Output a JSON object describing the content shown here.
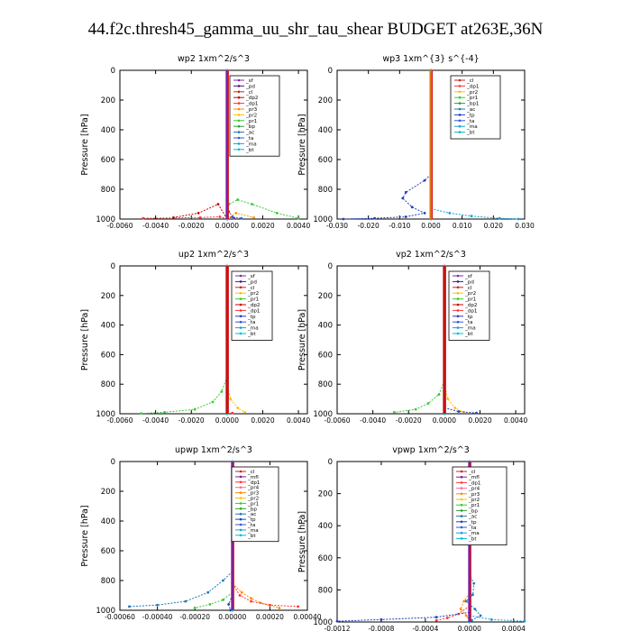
{
  "page_title": "44.f2c.thresh45_gamma_uu_shr_tau_shear  BUDGET at263E,36N",
  "chart_data": [
    {
      "type": "line",
      "title": "wp2   1xm^2/s^3",
      "ylabel": "Pressure [hPa]",
      "ylim": [
        1000,
        0
      ],
      "yticks": [
        0,
        200,
        400,
        600,
        800,
        1000
      ],
      "xlim": [
        -0.006,
        0.0045
      ],
      "xticks": [
        "-0.0060",
        "-0.0040",
        "-0.0020",
        "0.0000",
        "0.0020",
        "0.0040"
      ],
      "xtick_values": [
        -0.006,
        -0.004,
        -0.002,
        0.0,
        0.002,
        0.004
      ],
      "legend": [
        "_sf",
        "_pd",
        "_cl",
        "_dp2",
        "_dp1",
        "_pr3",
        "_pr2",
        "_pr1",
        "_bp",
        "_ac",
        "_ta",
        "_ma",
        "_bt"
      ],
      "series": [
        {
          "name": "_pr1",
          "color": "#33cc33",
          "points": [
            [
              0,
              1000
            ],
            [
              0.0001,
              900
            ],
            [
              0.0006,
              870
            ],
            [
              0.0014,
              900
            ],
            [
              0.0028,
              960
            ],
            [
              0.004,
              995
            ]
          ]
        },
        {
          "name": "_pr3",
          "color": "#ff8c00",
          "points": [
            [
              0,
              1000
            ],
            [
              0.0005,
              960
            ],
            [
              0.0015,
              990
            ]
          ]
        },
        {
          "name": "_dp1",
          "color": "#ff3333",
          "points": [
            [
              0,
              1000
            ],
            [
              -0.0004,
              985
            ],
            [
              -0.0015,
              990
            ],
            [
              -0.0047,
              995
            ]
          ]
        },
        {
          "name": "_dp2",
          "color": "#cc0000",
          "points": [
            [
              0,
              1000
            ],
            [
              -0.0005,
              900
            ],
            [
              -0.0016,
              960
            ],
            [
              -0.003,
              990
            ]
          ]
        },
        {
          "name": "_ac",
          "color": "#1f6fbf",
          "points": [
            [
              0,
              1000
            ],
            [
              0.0003,
              985
            ],
            [
              0.0008,
              995
            ]
          ]
        },
        {
          "name": "_sf",
          "color": "#7b2ea8",
          "points": [
            [
              0,
              1000
            ],
            [
              0.0001,
              950
            ],
            [
              0.0004,
              995
            ]
          ]
        },
        {
          "name": "_cl",
          "color": "#d42020",
          "points": [
            [
              0,
              0
            ],
            [
              0,
              1000
            ]
          ]
        },
        {
          "name": "_bt",
          "color": "#00bcd4",
          "points": [
            [
              0,
              0
            ],
            [
              0,
              1000
            ]
          ]
        }
      ],
      "vline": {
        "x": 0.0,
        "color": "#7b1fa2"
      }
    },
    {
      "type": "line",
      "title": "wp3   1xm^{3} s^{-4}",
      "ylabel": "Pressure [hPa]",
      "ylim": [
        1000,
        0
      ],
      "yticks": [
        0,
        200,
        400,
        600,
        800,
        1000
      ],
      "xlim": [
        -0.03,
        0.03
      ],
      "xticks": [
        "-0.030",
        "-0.020",
        "-0.010",
        "0.000",
        "0.010",
        "0.020",
        "0.030"
      ],
      "xtick_values": [
        -0.03,
        -0.02,
        -0.01,
        0.0,
        0.01,
        0.02,
        0.03
      ],
      "legend": [
        "_cl",
        "_dp1",
        "_pr2",
        "_pr1",
        "_bp1",
        "_ac",
        "_tp",
        "_ta",
        "_ma",
        "_bt"
      ],
      "series": [
        {
          "name": "_ac",
          "color": "#1f3fbf",
          "points": [
            [
              0,
              700
            ],
            [
              -0.002,
              740
            ],
            [
              -0.008,
              820
            ],
            [
              -0.009,
              860
            ],
            [
              -0.006,
              920
            ],
            [
              -0.002,
              960
            ],
            [
              -0.008,
              985
            ],
            [
              -0.018,
              995
            ],
            [
              -0.028,
              1000
            ]
          ]
        },
        {
          "name": "_ma",
          "color": "#1a9fd8",
          "points": [
            [
              0,
              930
            ],
            [
              0.006,
              960
            ],
            [
              0.013,
              980
            ],
            [
              0.022,
              995
            ],
            [
              0.028,
              1000
            ]
          ]
        },
        {
          "name": "_cl",
          "color": "#d42020",
          "points": [
            [
              0,
              0
            ],
            [
              0,
              1000
            ]
          ]
        },
        {
          "name": "_bt",
          "color": "#00bcd4",
          "points": [
            [
              0,
              0
            ],
            [
              0,
              1000
            ]
          ]
        }
      ],
      "vline": {
        "x": 0.0,
        "color": "#e07010"
      }
    },
    {
      "type": "line",
      "title": "up2   1xm^2/s^3",
      "ylabel": "Pressure [hPa]",
      "ylim": [
        1000,
        0
      ],
      "yticks": [
        0,
        200,
        400,
        600,
        800,
        1000
      ],
      "xlim": [
        -0.006,
        0.0045
      ],
      "xticks": [
        "-0.0060",
        "-0.0040",
        "-0.0020",
        "0.0000",
        "0.0020",
        "0.0040"
      ],
      "xtick_values": [
        -0.006,
        -0.004,
        -0.002,
        0.0,
        0.002,
        0.004
      ],
      "legend": [
        "_sf",
        "_pd",
        "_cl",
        "_pr2",
        "_pr1",
        "_dp2",
        "_dp1",
        "_tp",
        "_ta",
        "_ma",
        "_bt"
      ],
      "series": [
        {
          "name": "_pr1",
          "color": "#33cc33",
          "points": [
            [
              0,
              750
            ],
            [
              -0.0003,
              850
            ],
            [
              -0.0008,
              920
            ],
            [
              -0.0018,
              970
            ],
            [
              -0.0035,
              990
            ],
            [
              -0.0048,
              998
            ]
          ]
        },
        {
          "name": "_pr2",
          "color": "#ffc000",
          "points": [
            [
              0,
              800
            ],
            [
              0.0002,
              900
            ],
            [
              0.0006,
              960
            ],
            [
              0.001,
              990
            ]
          ]
        },
        {
          "name": "_dp1",
          "color": "#ff3333",
          "points": [
            [
              0,
              1000
            ],
            [
              0.0003,
              995
            ]
          ]
        },
        {
          "name": "_cl",
          "color": "#d42020",
          "points": [
            [
              0,
              0
            ],
            [
              0,
              1000
            ]
          ]
        },
        {
          "name": "_bt",
          "color": "#00bcd4",
          "points": [
            [
              0,
              0
            ],
            [
              0,
              1000
            ]
          ]
        }
      ],
      "vline": {
        "x": 0.0,
        "color": "#c01010"
      }
    },
    {
      "type": "line",
      "title": "vp2   1xm^2/s^3",
      "ylabel": "Pressure [hPa]",
      "ylim": [
        1000,
        0
      ],
      "yticks": [
        0,
        200,
        400,
        600,
        800,
        1000
      ],
      "xlim": [
        -0.006,
        0.0045
      ],
      "xticks": [
        "-0.0060",
        "-0.0040",
        "-0.0020",
        "0.0000",
        "0.0020",
        "0.0040"
      ],
      "xtick_values": [
        -0.006,
        -0.004,
        -0.002,
        0.0,
        0.002,
        0.004
      ],
      "legend": [
        "_sf",
        "_pd",
        "_cl",
        "_pr2",
        "_pr1",
        "_dp2",
        "_dp1",
        "_tp",
        "_ta",
        "_ma",
        "_bt"
      ],
      "series": [
        {
          "name": "_pr1",
          "color": "#33cc33",
          "points": [
            [
              0,
              780
            ],
            [
              -0.0003,
              870
            ],
            [
              -0.0009,
              930
            ],
            [
              -0.0016,
              970
            ],
            [
              -0.0028,
              990
            ]
          ]
        },
        {
          "name": "_pr2",
          "color": "#ffc000",
          "points": [
            [
              0,
              800
            ],
            [
              0.0002,
              900
            ],
            [
              0.0006,
              960
            ],
            [
              0.0011,
              990
            ]
          ]
        },
        {
          "name": "_ta",
          "color": "#1f3fbf",
          "points": [
            [
              0,
              960
            ],
            [
              0.0008,
              985
            ],
            [
              0.0018,
              995
            ]
          ]
        },
        {
          "name": "_cl",
          "color": "#d42020",
          "points": [
            [
              0,
              0
            ],
            [
              0,
              1000
            ]
          ]
        },
        {
          "name": "_bt",
          "color": "#00bcd4",
          "points": [
            [
              0,
              0
            ],
            [
              0,
              1000
            ]
          ]
        }
      ],
      "vline": {
        "x": 0.0,
        "color": "#c01010"
      }
    },
    {
      "type": "line",
      "title": "upwp   1xm^2/s^3",
      "ylabel": "Pressure [hPa]",
      "ylim": [
        1000,
        0
      ],
      "yticks": [
        0,
        200,
        400,
        600,
        800,
        1000
      ],
      "xlim": [
        -0.0006,
        0.0004
      ],
      "xticks": [
        "-0.00060",
        "-0.00040",
        "-0.00020",
        "0.00000",
        "0.00020",
        "0.00040"
      ],
      "xtick_values": [
        -0.0006,
        -0.0004,
        -0.0002,
        0.0,
        0.0002,
        0.0004
      ],
      "legend": [
        "_cl",
        "_mfl",
        "_dp1",
        "_pr4",
        "_pr3",
        "_pr2",
        "_pr1",
        "_bp",
        "_ac",
        "_tp",
        "_ta",
        "_ma",
        "_bt"
      ],
      "series": [
        {
          "name": "_ac",
          "color": "#1f77b4",
          "points": [
            [
              0,
              740
            ],
            [
              -5e-05,
              800
            ],
            [
              -0.00013,
              880
            ],
            [
              -0.00025,
              940
            ],
            [
              -0.0004,
              965
            ],
            [
              -0.00055,
              975
            ]
          ]
        },
        {
          "name": "_pr1",
          "color": "#33cc33",
          "points": [
            [
              0,
              880
            ],
            [
              -5e-05,
              930
            ],
            [
              -0.00012,
              960
            ],
            [
              -0.0002,
              985
            ]
          ]
        },
        {
          "name": "_pr2",
          "color": "#ff8c00",
          "points": [
            [
              0,
              820
            ],
            [
              5e-05,
              880
            ],
            [
              0.0001,
              920
            ],
            [
              0.00015,
              950
            ],
            [
              0.00025,
              985
            ]
          ]
        },
        {
          "name": "_dp1",
          "color": "#ff3333",
          "points": [
            [
              0,
              820
            ],
            [
              4e-05,
              900
            ],
            [
              0.0001,
              940
            ],
            [
              0.0002,
              965
            ],
            [
              0.00035,
              975
            ]
          ]
        },
        {
          "name": "_ta",
          "color": "#1f3fbf",
          "points": [
            [
              0,
              900
            ],
            [
              -2e-05,
              960
            ],
            [
              -1e-05,
              1000
            ]
          ]
        },
        {
          "name": "_cl",
          "color": "#d42020",
          "points": [
            [
              0,
              0
            ],
            [
              0,
              1000
            ]
          ]
        },
        {
          "name": "_bt",
          "color": "#00bcd4",
          "points": [
            [
              0,
              0
            ],
            [
              0,
              1000
            ]
          ]
        }
      ],
      "vline": {
        "x": 0.0,
        "color": "#7b1fa2"
      }
    },
    {
      "type": "line",
      "title": "vpwp   1xm^2/s^3",
      "ylabel": "Pressure [hPa]",
      "ylim": [
        1000,
        0
      ],
      "yticks": [
        0,
        200,
        400,
        600,
        800,
        1000
      ],
      "xlim": [
        -0.0012,
        0.0005
      ],
      "xticks": [
        "-0.0012",
        "-0.0008",
        "-0.0004",
        "0.0000",
        "0.0004"
      ],
      "xtick_values": [
        -0.0012,
        -0.0008,
        -0.0004,
        0.0,
        0.0004
      ],
      "legend": [
        "_cl",
        "_mfl",
        "_dp1",
        "_pr4",
        "_pr3",
        "_pr2",
        "_pr1",
        "_bp",
        "_ac",
        "_tp",
        "_ta",
        "_ma",
        "_bt"
      ],
      "series": [
        {
          "name": "_ac",
          "color": "#1f77b4",
          "points": [
            [
              0,
              700
            ],
            [
              4e-05,
              760
            ],
            [
              3e-05,
              830
            ],
            [
              -3e-05,
              870
            ],
            [
              5e-05,
              920
            ],
            [
              0.0001,
              960
            ],
            [
              2e-05,
              990
            ]
          ]
        },
        {
          "name": "_pr2",
          "color": "#ff8c00",
          "points": [
            [
              0,
              820
            ],
            [
              -5e-05,
              870
            ],
            [
              -8e-05,
              920
            ],
            [
              -3e-05,
              960
            ],
            [
              0.0,
              990
            ]
          ]
        },
        {
          "name": "_dp1",
          "color": "#ff3333",
          "points": [
            [
              0,
              900
            ],
            [
              -0.0001,
              950
            ],
            [
              -0.0002,
              975
            ],
            [
              -0.0003,
              990
            ]
          ]
        },
        {
          "name": "_ta",
          "color": "#1f3fbf",
          "points": [
            [
              0,
              940
            ],
            [
              -0.0003,
              970
            ],
            [
              -0.0008,
              985
            ],
            [
              -0.0012,
              995
            ]
          ]
        },
        {
          "name": "_ma",
          "color": "#1a9fd8",
          "points": [
            [
              0,
              960
            ],
            [
              0.0002,
              985
            ],
            [
              0.0005,
              995
            ]
          ]
        },
        {
          "name": "_cl",
          "color": "#d42020",
          "points": [
            [
              0,
              0
            ],
            [
              0,
              1000
            ]
          ]
        },
        {
          "name": "_bt",
          "color": "#00bcd4",
          "points": [
            [
              0,
              0
            ],
            [
              0,
              1000
            ]
          ]
        }
      ],
      "vline": {
        "x": 0.0,
        "color": "#7b1fa2"
      }
    }
  ],
  "legend_colors": {
    "_sf": "#7b2ea8",
    "_pd": "#4a148c",
    "_cl": "#d42020",
    "_dp2": "#cc0000",
    "_dp1": "#ff3333",
    "_pr4": "#ff66aa",
    "_pr3": "#ff8c00",
    "_pr2": "#ffc000",
    "_pr1": "#33cc33",
    "_bp": "#2e9e2e",
    "_bp1": "#2e9e2e",
    "_ac": "#1f77b4",
    "_tp": "#1f3fbf",
    "_ta": "#3355dd",
    "_ma": "#1a9fd8",
    "_bt": "#00bcd4",
    "_mfl": "#7b1fa2"
  }
}
